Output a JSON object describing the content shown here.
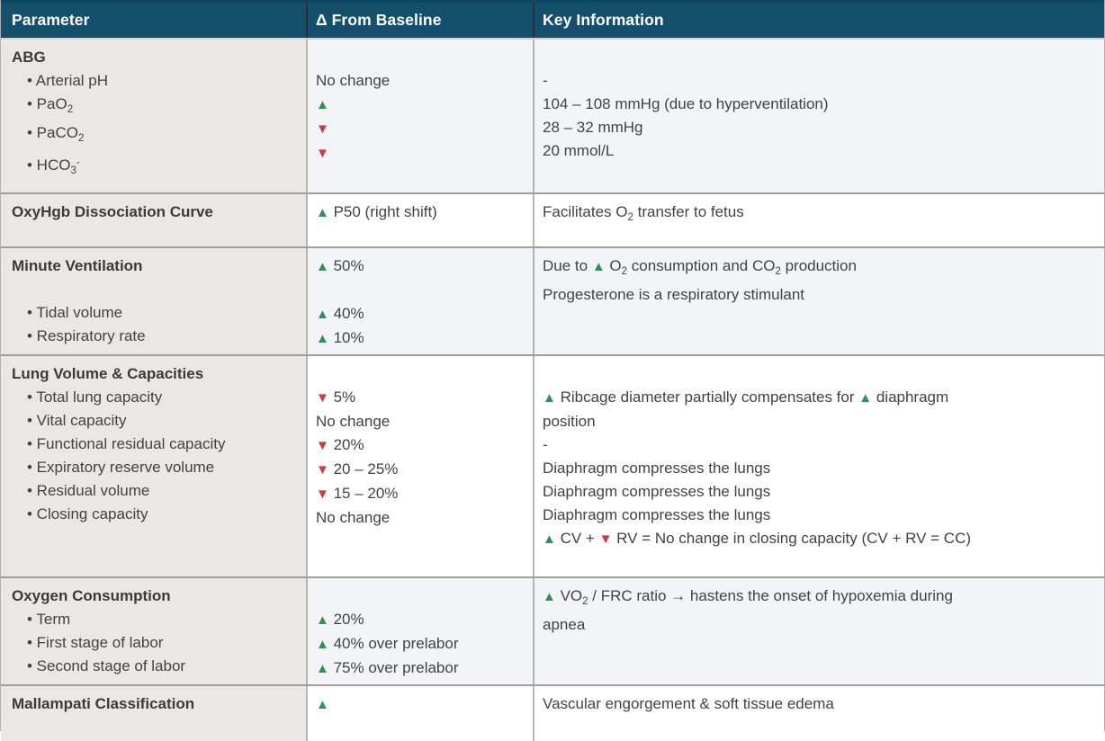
{
  "header": {
    "columns": [
      "Parameter",
      "Δ From Baseline",
      "Key Information"
    ]
  },
  "colors": {
    "header_bg": "#14506b",
    "header_top_border": "#0e455f",
    "header_divider": "#2b3137",
    "param_bg": "#e9e8e6",
    "alt_bg": "#f2f4f8",
    "row_border": "#9e9e9e",
    "col_border": "#b5b5b5",
    "text": "#424242",
    "title": "#3a3a3a",
    "up": "#2e9156",
    "down": "#ce3944"
  },
  "icons": {
    "increase": {
      "name": "up-triangle-icon",
      "glyph": "▲"
    },
    "decrease": {
      "name": "down-triangle-icon",
      "glyph": "▼"
    }
  },
  "rows": [
    {
      "param": [
        [
          {
            "t": "ABG"
          }
        ],
        [
          {
            "t": "• Arterial pH"
          }
        ],
        [
          {
            "t": "• PaO"
          },
          {
            "t": "2",
            "s": "sub"
          }
        ],
        [
          {
            "t": "• PaCO"
          },
          {
            "t": "2",
            "s": "sub"
          }
        ],
        [
          {
            "t": "• HCO"
          },
          {
            "t": "3",
            "s": "sub"
          },
          {
            "t": "-",
            "s": "sup"
          }
        ]
      ],
      "delta": [
        [],
        [
          {
            "t": "No change"
          }
        ],
        [
          {
            "t": "▲",
            "s": "up"
          }
        ],
        [
          {
            "t": "▼",
            "s": "down"
          }
        ],
        [
          {
            "t": "▼",
            "s": "down"
          }
        ]
      ],
      "info": [
        [],
        [
          {
            "t": "-"
          }
        ],
        [
          {
            "t": "104 – 108 mmHg (due to hyperventilation)"
          }
        ],
        [
          {
            "t": "28 – 32 mmHg"
          }
        ],
        [
          {
            "t": "20 mmol/L"
          }
        ]
      ]
    },
    {
      "param": [
        [
          {
            "t": "OxyHgb Dissociation Curve"
          }
        ]
      ],
      "delta": [
        [
          {
            "t": "▲",
            "s": "up"
          },
          {
            "t": " P50 (right shift)"
          }
        ]
      ],
      "info": [
        [
          {
            "t": "Facilitates O"
          },
          {
            "t": "2",
            "s": "sub"
          },
          {
            "t": " transfer to fetus"
          }
        ]
      ]
    },
    {
      "param": [
        [
          {
            "t": "Minute Ventilation"
          }
        ],
        [],
        [
          {
            "t": "• Tidal volume"
          }
        ],
        [
          {
            "t": "• Respiratory rate"
          }
        ]
      ],
      "delta": [
        [
          {
            "t": "▲",
            "s": "up"
          },
          {
            "t": " 50%"
          }
        ],
        [],
        [
          {
            "t": "▲",
            "s": "up"
          },
          {
            "t": " 40%"
          }
        ],
        [
          {
            "t": "▲",
            "s": "up"
          },
          {
            "t": " 10%"
          }
        ]
      ],
      "info": [
        [
          {
            "t": "Due to "
          },
          {
            "t": "▲",
            "s": "up"
          },
          {
            "t": " O"
          },
          {
            "t": "2",
            "s": "sub"
          },
          {
            "t": " consumption and CO"
          },
          {
            "t": "2",
            "s": "sub"
          },
          {
            "t": " production"
          }
        ],
        [
          {
            "t": "Progesterone is a respiratory stimulant"
          }
        ]
      ]
    },
    {
      "param": [
        [
          {
            "t": "Lung Volume & Capacities"
          }
        ],
        [
          {
            "t": "• Total lung capacity"
          }
        ],
        [
          {
            "t": "• Vital capacity"
          }
        ],
        [
          {
            "t": "• Functional residual capacity"
          }
        ],
        [
          {
            "t": "• Expiratory reserve volume"
          }
        ],
        [
          {
            "t": "• Residual volume"
          }
        ],
        [
          {
            "t": "• Closing capacity"
          }
        ]
      ],
      "delta": [
        [],
        [
          {
            "t": "▼",
            "s": "down"
          },
          {
            "t": " 5%"
          }
        ],
        [
          {
            "t": "No change"
          }
        ],
        [
          {
            "t": "▼",
            "s": "down"
          },
          {
            "t": " 20%"
          }
        ],
        [
          {
            "t": "▼",
            "s": "down"
          },
          {
            "t": " 20 – 25%"
          }
        ],
        [
          {
            "t": "▼",
            "s": "down"
          },
          {
            "t": " 15 – 20%"
          }
        ],
        [
          {
            "t": "No change"
          }
        ]
      ],
      "info": [
        [],
        [
          {
            "t": "▲",
            "s": "up"
          },
          {
            "t": " Ribcage diameter partially compensates for "
          },
          {
            "t": "▲",
            "s": "up"
          },
          {
            "t": " diaphragm"
          }
        ],
        [
          {
            "t": "position"
          }
        ],
        [
          {
            "t": "-"
          }
        ],
        [
          {
            "t": "Diaphragm compresses the lungs"
          }
        ],
        [
          {
            "t": "Diaphragm compresses the lungs"
          }
        ],
        [
          {
            "t": "Diaphragm compresses the lungs"
          }
        ],
        [
          {
            "t": "▲",
            "s": "up"
          },
          {
            "t": " CV + "
          },
          {
            "t": "▼",
            "s": "down"
          },
          {
            "t": " RV = No change in closing capacity (CV + RV = CC)"
          }
        ]
      ]
    },
    {
      "param": [
        [
          {
            "t": "Oxygen Consumption"
          }
        ],
        [
          {
            "t": "• Term"
          }
        ],
        [
          {
            "t": "• First stage of labor"
          }
        ],
        [
          {
            "t": "• Second stage of labor"
          }
        ]
      ],
      "delta": [
        [],
        [
          {
            "t": "▲",
            "s": "up"
          },
          {
            "t": " 20%"
          }
        ],
        [
          {
            "t": "▲",
            "s": "up"
          },
          {
            "t": " 40% over prelabor"
          }
        ],
        [
          {
            "t": "▲",
            "s": "up"
          },
          {
            "t": " 75% over prelabor"
          }
        ]
      ],
      "info": [
        [
          {
            "t": "▲",
            "s": "up"
          },
          {
            "t": " VO"
          },
          {
            "t": "2",
            "s": "sub"
          },
          {
            "t": " / FRC ratio → hastens the onset of hypoxemia during"
          }
        ],
        [
          {
            "t": "apnea"
          }
        ]
      ]
    },
    {
      "param": [
        [
          {
            "t": "Mallampati Classification"
          }
        ]
      ],
      "delta": [
        [
          {
            "t": "▲",
            "s": "up"
          }
        ]
      ],
      "info": [
        [
          {
            "t": "Vascular engorgement & soft tissue edema"
          }
        ]
      ]
    }
  ]
}
